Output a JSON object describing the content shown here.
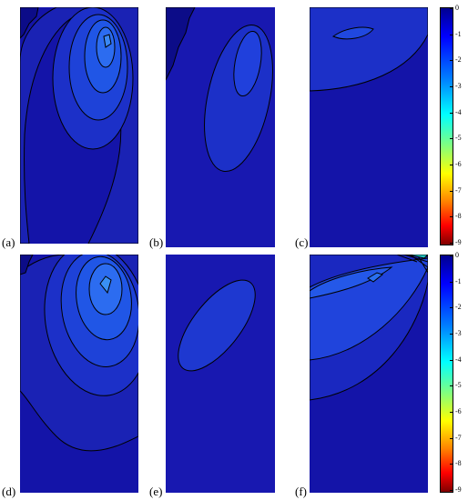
{
  "chart_data": [
    {
      "type": "heatmap",
      "panel_label": "(a)",
      "description_levels": [
        -1,
        -2,
        -3,
        -4,
        -5
      ],
      "zlim": [
        -9,
        0
      ]
    },
    {
      "type": "heatmap",
      "panel_label": "(b)",
      "description_levels": [
        -1,
        -2
      ],
      "zlim": [
        -9,
        0
      ]
    },
    {
      "type": "heatmap",
      "panel_label": "(c)",
      "description_levels": [
        -1,
        -2
      ],
      "zlim": [
        -9,
        0
      ]
    },
    {
      "type": "heatmap",
      "panel_label": "(d)",
      "description_levels": [
        -1,
        -2,
        -3,
        -4,
        -5
      ],
      "zlim": [
        -9,
        0
      ]
    },
    {
      "type": "heatmap",
      "panel_label": "(e)",
      "description_levels": [
        -1,
        -2
      ],
      "zlim": [
        -9,
        0
      ]
    },
    {
      "type": "heatmap",
      "panel_label": "(f)",
      "description_levels": [
        -1,
        -2,
        -3
      ],
      "zlim": [
        -9,
        0
      ]
    }
  ],
  "colorbars": [
    {
      "ticks": [
        "0",
        "-1",
        "-2",
        "-3",
        "-4",
        "-5",
        "-6",
        "-7",
        "-8",
        "-9"
      ]
    },
    {
      "ticks": [
        "0",
        "-1",
        "-2",
        "-3",
        "-4",
        "-5",
        "-6",
        "-7",
        "-8",
        "-9"
      ]
    }
  ],
  "colors": {
    "level_0": "#1010a0",
    "level_1": "#1a28c0",
    "level_2": "#1e40d8",
    "level_3": "#2058e8",
    "level_4": "#2870f0",
    "level_5": "#3088f4",
    "contour": "#000000",
    "colormap": [
      "#00008f",
      "#0000ff",
      "#0080ff",
      "#00ffff",
      "#80ff80",
      "#ffff00",
      "#ff8000",
      "#ff0000",
      "#800000"
    ]
  }
}
